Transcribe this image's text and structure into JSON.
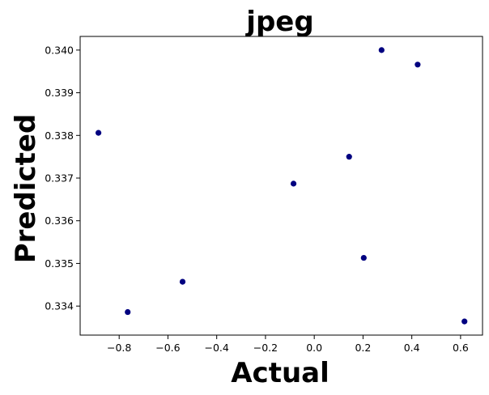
{
  "chart_data": {
    "type": "scatter",
    "title": "jpeg",
    "xlabel": "Actual",
    "ylabel": "Predicted",
    "xlim": [
      -0.96,
      0.69
    ],
    "ylim": [
      0.33332,
      0.34032
    ],
    "xticks": [
      -0.8,
      -0.6,
      -0.4,
      -0.2,
      0.0,
      0.2,
      0.4,
      0.6
    ],
    "xtick_labels": [
      "−0.8",
      "−0.6",
      "−0.4",
      "−0.2",
      "0.0",
      "0.2",
      "0.4",
      "0.6"
    ],
    "yticks": [
      0.334,
      0.335,
      0.336,
      0.337,
      0.338,
      0.339,
      0.34
    ],
    "ytick_labels": [
      "0.334",
      "0.335",
      "0.336",
      "0.337",
      "0.338",
      "0.339",
      "0.340"
    ],
    "grid": false,
    "marker_color": "#000080",
    "points": [
      {
        "x": -0.885,
        "y": 0.33806
      },
      {
        "x": -0.765,
        "y": 0.33386
      },
      {
        "x": -0.54,
        "y": 0.33457
      },
      {
        "x": -0.085,
        "y": 0.33687
      },
      {
        "x": 0.143,
        "y": 0.3375
      },
      {
        "x": 0.203,
        "y": 0.33513
      },
      {
        "x": 0.276,
        "y": 0.34
      },
      {
        "x": 0.424,
        "y": 0.33966
      },
      {
        "x": 0.616,
        "y": 0.33364
      }
    ]
  }
}
